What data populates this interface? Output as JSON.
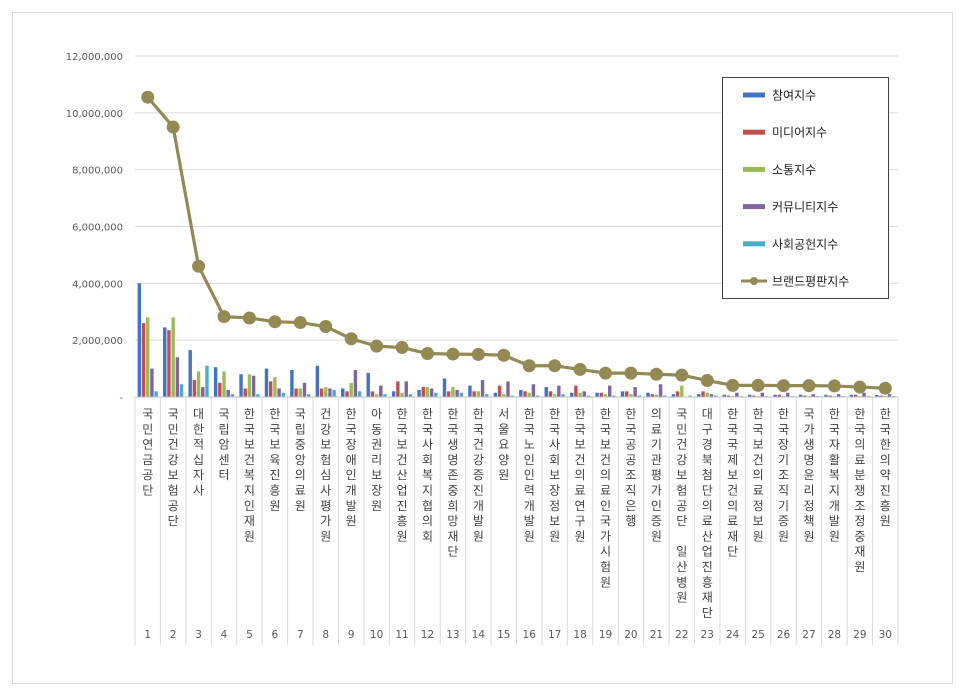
{
  "chart_data": {
    "type": "bar",
    "title": "",
    "xlabel": "",
    "ylabel": "",
    "ylim": [
      0,
      12000000
    ],
    "yticks": [
      0,
      2000000,
      4000000,
      6000000,
      8000000,
      10000000,
      12000000
    ],
    "ytick_labels": [
      "-",
      "2,000,000",
      "4,000,000",
      "6,000,000",
      "8,000,000",
      "10,000,000",
      "12,000,000"
    ],
    "grid": true,
    "legend_position": "top-right",
    "ranks": [
      "1",
      "2",
      "3",
      "4",
      "5",
      "6",
      "7",
      "8",
      "9",
      "10",
      "11",
      "12",
      "13",
      "14",
      "15",
      "16",
      "17",
      "18",
      "19",
      "20",
      "21",
      "22",
      "23",
      "24",
      "25",
      "26",
      "27",
      "28",
      "29",
      "30"
    ],
    "categories": [
      "국민연금공단",
      "국민건강보험공단",
      "대한적십자사",
      "국립암센터",
      "한국보건복지인재원",
      "한국보육진흥원",
      "국립중앙의료원",
      "건강보험심사평가원",
      "한국장애인개발원",
      "아동권리보장원",
      "한국보건산업진흥원",
      "한국사회복지협의회",
      "한국생명존중희망재단",
      "한국건강증진개발원",
      "서울요양원",
      "한국노인인력개발원",
      "한국사회보장정보원",
      "한국보건의료연구원",
      "한국보건의료인국가시험원",
      "한국공공조직은행",
      "의료기관평가인증원",
      "국민건강보험공단 일산병원",
      "대구경북첨단의료산업진흥재단",
      "한국국제보건의료재단",
      "한국보건의료정보원",
      "한국장기조직기증원",
      "국가생명윤리정책원",
      "한국자활복지개발원",
      "한국의료분쟁조정중재원",
      "한국한의약진흥원"
    ],
    "series": [
      {
        "name": "참여지수",
        "color": "#4472c4",
        "kind": "bar",
        "values": [
          4000000,
          2450000,
          1650000,
          1050000,
          800000,
          1000000,
          950000,
          1100000,
          300000,
          850000,
          200000,
          250000,
          650000,
          400000,
          150000,
          250000,
          350000,
          150000,
          150000,
          200000,
          150000,
          100000,
          100000,
          80000,
          80000,
          80000,
          80000,
          80000,
          80000,
          70000
        ]
      },
      {
        "name": "미디어지수",
        "color": "#c0504d",
        "kind": "bar",
        "values": [
          2600000,
          2350000,
          600000,
          500000,
          300000,
          550000,
          300000,
          300000,
          200000,
          200000,
          550000,
          350000,
          200000,
          200000,
          400000,
          200000,
          200000,
          400000,
          150000,
          200000,
          100000,
          200000,
          200000,
          50000,
          50000,
          80000,
          50000,
          50000,
          80000,
          50000
        ]
      },
      {
        "name": "소통지수",
        "color": "#9bbb59",
        "kind": "bar",
        "values": [
          2800000,
          2800000,
          900000,
          900000,
          800000,
          700000,
          300000,
          350000,
          500000,
          100000,
          150000,
          350000,
          350000,
          200000,
          100000,
          150000,
          100000,
          150000,
          100000,
          100000,
          80000,
          400000,
          150000,
          30000,
          30000,
          30000,
          30000,
          30000,
          30000,
          30000
        ]
      },
      {
        "name": "커뮤니티지수",
        "color": "#8064a2",
        "kind": "bar",
        "values": [
          1000000,
          1400000,
          350000,
          250000,
          750000,
          300000,
          500000,
          300000,
          950000,
          400000,
          550000,
          300000,
          250000,
          600000,
          550000,
          450000,
          400000,
          200000,
          400000,
          350000,
          450000,
          0,
          100000,
          150000,
          150000,
          150000,
          100000,
          100000,
          150000,
          100000
        ]
      },
      {
        "name": "사회공헌지수",
        "color": "#4bacc6",
        "kind": "bar",
        "values": [
          200000,
          450000,
          1100000,
          100000,
          100000,
          150000,
          100000,
          250000,
          200000,
          100000,
          100000,
          150000,
          150000,
          100000,
          50000,
          50000,
          100000,
          50000,
          50000,
          50000,
          50000,
          50000,
          50000,
          30000,
          30000,
          30000,
          30000,
          30000,
          30000,
          30000
        ]
      },
      {
        "name": "브랜드평판지수",
        "color": "#938953",
        "kind": "line",
        "values": [
          10550000,
          9500000,
          4600000,
          2830000,
          2780000,
          2650000,
          2620000,
          2480000,
          2050000,
          1790000,
          1740000,
          1530000,
          1510000,
          1500000,
          1470000,
          1100000,
          1100000,
          970000,
          840000,
          840000,
          800000,
          770000,
          580000,
          410000,
          410000,
          400000,
          400000,
          390000,
          350000,
          310000
        ]
      }
    ]
  }
}
